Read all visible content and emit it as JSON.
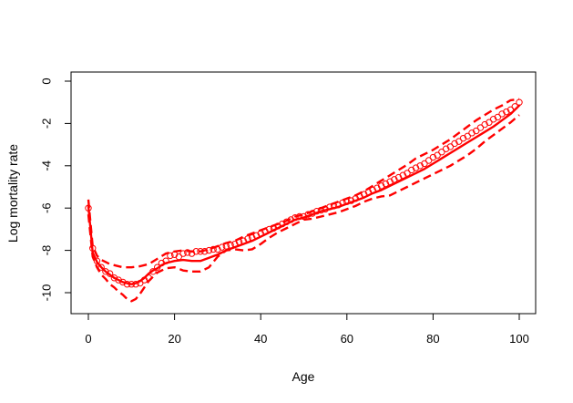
{
  "chart_data": {
    "type": "line",
    "title": "",
    "xlabel": "Age",
    "ylabel": "Log mortality rate",
    "xlim": [
      0,
      100
    ],
    "ylim": [
      -10.5,
      0
    ],
    "xticks": [
      0,
      20,
      40,
      60,
      80,
      100
    ],
    "yticks": [
      0,
      -2,
      -4,
      -6,
      -8,
      -10
    ],
    "grid": false,
    "color": "#ff0000",
    "series": [
      {
        "style": "points",
        "x": [
          0,
          1,
          2,
          3,
          4,
          5,
          6,
          7,
          8,
          9,
          10,
          11,
          12,
          13,
          14,
          15,
          16,
          17,
          18,
          19,
          20,
          21,
          22,
          23,
          24,
          25,
          26,
          27,
          28,
          29,
          30,
          31,
          32,
          33,
          34,
          35,
          36,
          37,
          38,
          39,
          40,
          41,
          42,
          43,
          44,
          45,
          46,
          47,
          48,
          49,
          50,
          51,
          52,
          53,
          54,
          55,
          56,
          57,
          58,
          59,
          60,
          61,
          62,
          63,
          64,
          65,
          66,
          67,
          68,
          69,
          70,
          71,
          72,
          73,
          74,
          75,
          76,
          77,
          78,
          79,
          80,
          81,
          82,
          83,
          84,
          85,
          86,
          87,
          88,
          89,
          90,
          91,
          92,
          93,
          94,
          95,
          96,
          97,
          98,
          99,
          100
        ],
        "y": [
          -6.0,
          -7.9,
          -8.5,
          -8.8,
          -9.0,
          -9.1,
          -9.3,
          -9.4,
          -9.5,
          -9.6,
          -9.6,
          -9.6,
          -9.55,
          -9.4,
          -9.3,
          -9.0,
          -8.8,
          -8.6,
          -8.5,
          -8.25,
          -8.2,
          -8.3,
          -8.15,
          -8.1,
          -8.15,
          -8.05,
          -8.05,
          -8.05,
          -8.0,
          -7.95,
          -7.95,
          -7.85,
          -7.8,
          -7.75,
          -7.7,
          -7.6,
          -7.55,
          -7.45,
          -7.4,
          -7.3,
          -7.2,
          -7.1,
          -7.0,
          -6.95,
          -6.85,
          -6.75,
          -6.65,
          -6.55,
          -6.45,
          -6.4,
          -6.4,
          -6.3,
          -6.25,
          -6.15,
          -6.1,
          -6.05,
          -5.95,
          -5.9,
          -5.85,
          -5.75,
          -5.7,
          -5.65,
          -5.55,
          -5.45,
          -5.35,
          -5.25,
          -5.15,
          -5.05,
          -4.95,
          -4.85,
          -4.75,
          -4.65,
          -4.55,
          -4.45,
          -4.35,
          -4.2,
          -4.1,
          -4.0,
          -3.9,
          -3.75,
          -3.6,
          -3.5,
          -3.35,
          -3.2,
          -3.1,
          -2.95,
          -2.85,
          -2.7,
          -2.6,
          -2.45,
          -2.35,
          -2.2,
          -2.05,
          -1.95,
          -1.8,
          -1.7,
          -1.55,
          -1.45,
          -1.35,
          -1.2,
          -1.0
        ]
      },
      {
        "style": "solid",
        "x": [
          0,
          1,
          2,
          3,
          4,
          5,
          6,
          7,
          8,
          9,
          10,
          11,
          12,
          13,
          14,
          15,
          16,
          17,
          18,
          19,
          20,
          22,
          24,
          26,
          28,
          30,
          32,
          34,
          36,
          38,
          40,
          42,
          44,
          46,
          48,
          50,
          52,
          54,
          56,
          58,
          60,
          62,
          64,
          66,
          68,
          70,
          72,
          74,
          76,
          78,
          80,
          82,
          84,
          86,
          88,
          90,
          92,
          94,
          96,
          98,
          100
        ],
        "y": [
          -5.9,
          -8.1,
          -8.55,
          -8.8,
          -9.0,
          -9.15,
          -9.3,
          -9.4,
          -9.5,
          -9.55,
          -9.6,
          -9.55,
          -9.45,
          -9.3,
          -9.1,
          -8.95,
          -8.85,
          -8.7,
          -8.6,
          -8.55,
          -8.5,
          -8.45,
          -8.5,
          -8.5,
          -8.35,
          -8.2,
          -8.0,
          -7.85,
          -7.7,
          -7.55,
          -7.35,
          -7.15,
          -6.95,
          -6.75,
          -6.55,
          -6.45,
          -6.3,
          -6.15,
          -6.05,
          -5.95,
          -5.8,
          -5.65,
          -5.5,
          -5.3,
          -5.15,
          -4.95,
          -4.75,
          -4.55,
          -4.35,
          -4.15,
          -3.9,
          -3.65,
          -3.4,
          -3.15,
          -2.9,
          -2.65,
          -2.4,
          -2.15,
          -1.85,
          -1.55,
          -1.15
        ]
      },
      {
        "style": "dashed",
        "x": [
          0,
          1,
          2,
          3,
          4,
          5,
          6,
          8,
          10,
          12,
          14,
          16,
          18,
          20,
          22,
          24,
          26,
          28,
          30,
          32,
          34,
          36,
          38,
          40,
          42,
          44,
          46,
          48,
          50,
          52,
          54,
          56,
          58,
          60,
          62,
          64,
          66,
          68,
          70,
          72,
          74,
          76,
          78,
          80,
          82,
          84,
          86,
          88,
          90,
          92,
          94,
          96,
          98,
          100
        ],
        "y": [
          -5.6,
          -7.8,
          -8.25,
          -8.45,
          -8.55,
          -8.65,
          -8.7,
          -8.8,
          -8.8,
          -8.75,
          -8.65,
          -8.4,
          -8.15,
          -8.05,
          -8.0,
          -8.05,
          -8.05,
          -7.95,
          -7.8,
          -7.65,
          -7.55,
          -7.35,
          -7.2,
          -7.05,
          -6.9,
          -6.75,
          -6.6,
          -6.4,
          -6.3,
          -6.15,
          -6.0,
          -5.85,
          -5.7,
          -5.55,
          -5.4,
          -5.2,
          -4.95,
          -4.7,
          -4.45,
          -4.2,
          -3.95,
          -3.65,
          -3.45,
          -3.25,
          -3.0,
          -2.75,
          -2.45,
          -2.15,
          -1.85,
          -1.6,
          -1.35,
          -1.15,
          -0.9,
          -0.85
        ]
      },
      {
        "style": "dashed",
        "x": [
          0,
          1,
          2,
          3,
          4,
          5,
          6,
          7,
          8,
          9,
          10,
          11,
          12,
          13,
          14,
          16,
          18,
          20,
          22,
          24,
          26,
          28,
          30,
          32,
          34,
          36,
          38,
          40,
          42,
          44,
          46,
          48,
          50,
          52,
          54,
          56,
          58,
          60,
          62,
          64,
          66,
          68,
          70,
          72,
          74,
          76,
          78,
          80,
          82,
          84,
          86,
          88,
          90,
          92,
          94,
          96,
          98,
          100
        ],
        "y": [
          -6.3,
          -8.3,
          -8.8,
          -9.15,
          -9.35,
          -9.6,
          -9.75,
          -9.95,
          -10.1,
          -10.3,
          -10.4,
          -10.3,
          -10.05,
          -9.75,
          -9.45,
          -9.05,
          -8.85,
          -8.8,
          -8.95,
          -9.0,
          -9.0,
          -8.8,
          -8.3,
          -8.0,
          -7.95,
          -8.0,
          -7.95,
          -7.7,
          -7.4,
          -7.15,
          -6.95,
          -6.75,
          -6.55,
          -6.5,
          -6.4,
          -6.3,
          -6.2,
          -6.05,
          -5.9,
          -5.7,
          -5.55,
          -5.45,
          -5.4,
          -5.2,
          -5.0,
          -4.8,
          -4.6,
          -4.4,
          -4.2,
          -4.0,
          -3.75,
          -3.5,
          -3.2,
          -2.85,
          -2.55,
          -2.25,
          -1.95,
          -1.6
        ]
      }
    ]
  }
}
